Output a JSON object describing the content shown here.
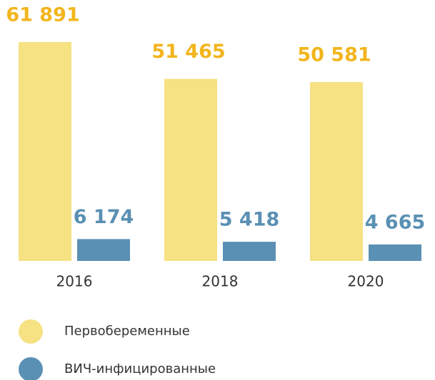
{
  "chart_data": {
    "type": "bar",
    "categories": [
      "2016",
      "2018",
      "2020"
    ],
    "series": [
      {
        "name": "Первобеременные",
        "color": "#f6e183",
        "label_color": "#f2b51c",
        "values": [
          61891,
          51465,
          50581
        ],
        "value_labels": [
          "61 891",
          "51 465",
          "50 581"
        ]
      },
      {
        "name": "ВИЧ-инфицированные",
        "color": "#5a90b3",
        "label_color": "#5a90b3",
        "values": [
          6174,
          5418,
          4665
        ],
        "value_labels": [
          "6 174",
          "5 418",
          "4 665"
        ]
      }
    ]
  }
}
